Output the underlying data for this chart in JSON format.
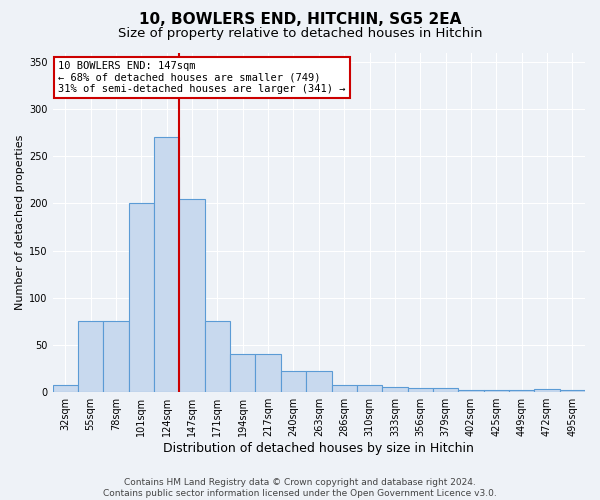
{
  "title": "10, BOWLERS END, HITCHIN, SG5 2EA",
  "subtitle": "Size of property relative to detached houses in Hitchin",
  "xlabel": "Distribution of detached houses by size in Hitchin",
  "ylabel": "Number of detached properties",
  "categories": [
    "32sqm",
    "55sqm",
    "78sqm",
    "101sqm",
    "124sqm",
    "147sqm",
    "171sqm",
    "194sqm",
    "217sqm",
    "240sqm",
    "263sqm",
    "286sqm",
    "310sqm",
    "333sqm",
    "356sqm",
    "379sqm",
    "402sqm",
    "425sqm",
    "449sqm",
    "472sqm",
    "495sqm"
  ],
  "values": [
    8,
    75,
    75,
    200,
    270,
    205,
    75,
    40,
    40,
    22,
    22,
    8,
    8,
    5,
    4,
    4,
    2,
    2,
    2,
    3,
    2
  ],
  "bar_color": "#c8d9ee",
  "bar_edge_color": "#5b9bd5",
  "marker_index": 4.5,
  "marker_color": "#cc0000",
  "ylim": [
    0,
    360
  ],
  "yticks": [
    0,
    50,
    100,
    150,
    200,
    250,
    300,
    350
  ],
  "annotation_text": "10 BOWLERS END: 147sqm\n← 68% of detached houses are smaller (749)\n31% of semi-detached houses are larger (341) →",
  "annotation_box_color": "#ffffff",
  "annotation_box_edge_color": "#cc0000",
  "footer_line1": "Contains HM Land Registry data © Crown copyright and database right 2024.",
  "footer_line2": "Contains public sector information licensed under the Open Government Licence v3.0.",
  "background_color": "#eef2f7",
  "grid_color": "#ffffff",
  "title_fontsize": 11,
  "subtitle_fontsize": 9.5,
  "xlabel_fontsize": 9,
  "ylabel_fontsize": 8,
  "tick_fontsize": 7,
  "annotation_fontsize": 7.5,
  "footer_fontsize": 6.5
}
